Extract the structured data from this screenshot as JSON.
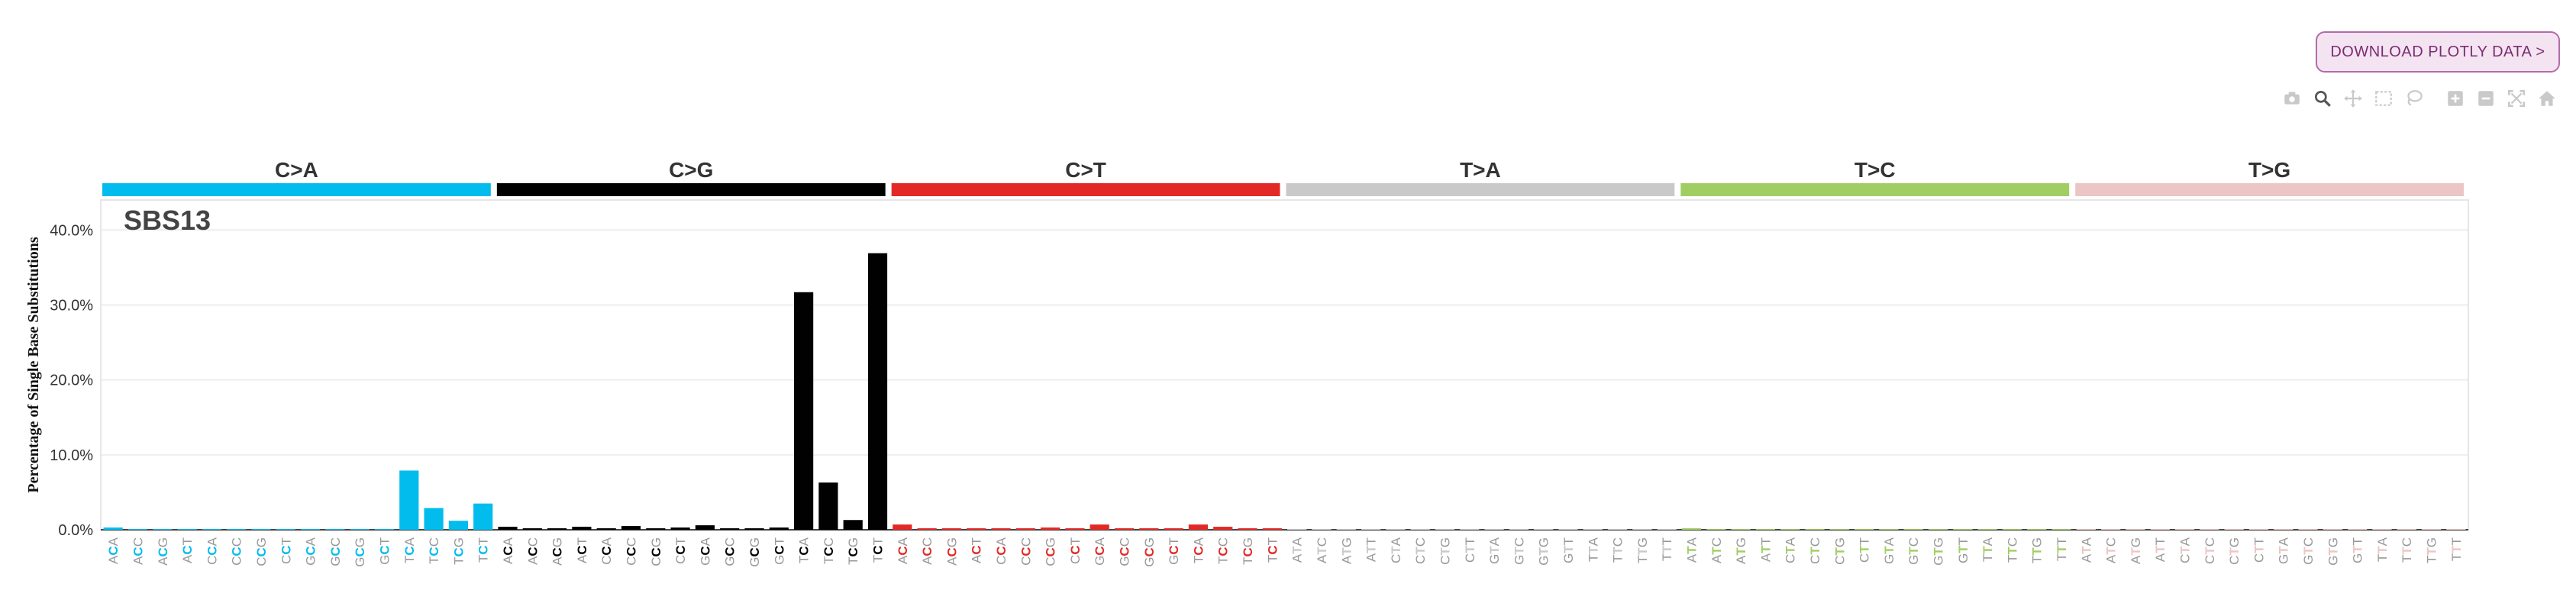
{
  "download_button": {
    "label": "DOWNLOAD PLOTLY DATA >"
  },
  "modebar": {
    "buttons": [
      {
        "name": "camera-icon"
      },
      {
        "name": "zoom-icon"
      },
      {
        "name": "pan-icon"
      },
      {
        "name": "box-select-icon"
      },
      {
        "name": "lasso-select-icon"
      },
      {
        "name": "zoom-in-icon"
      },
      {
        "name": "zoom-out-icon"
      },
      {
        "name": "autoscale-icon"
      },
      {
        "name": "home-icon"
      }
    ]
  },
  "chart_data": {
    "type": "bar",
    "title": "SBS13",
    "ylabel": "Percentage of Single Base Substitutions",
    "xlabel": "",
    "ylim": [
      0,
      0.44
    ],
    "yticks": [
      0,
      0.1,
      0.2,
      0.3,
      0.4
    ],
    "ytick_labels": [
      "0.0%",
      "10.0%",
      "20.0%",
      "30.0%",
      "40.0%"
    ],
    "grid": true,
    "legend": "none",
    "groups": [
      {
        "label": "C>A",
        "color": "#03bcee"
      },
      {
        "label": "C>G",
        "color": "#010101"
      },
      {
        "label": "C>T",
        "color": "#e32926"
      },
      {
        "label": "T>A",
        "color": "#cac9c9"
      },
      {
        "label": "T>C",
        "color": "#a1ce63"
      },
      {
        "label": "T>G",
        "color": "#ebc6c4"
      }
    ],
    "contexts_c": [
      "ACA",
      "ACC",
      "ACG",
      "ACT",
      "CCA",
      "CCC",
      "CCG",
      "CCT",
      "GCA",
      "GCC",
      "GCG",
      "GCT",
      "TCA",
      "TCC",
      "TCG",
      "TCT"
    ],
    "contexts_t": [
      "ATA",
      "ATC",
      "ATG",
      "ATT",
      "CTA",
      "CTC",
      "CTG",
      "CTT",
      "GTA",
      "GTC",
      "GTG",
      "GTT",
      "TTA",
      "TTC",
      "TTG",
      "TTT"
    ],
    "values": [
      [
        0.003,
        0.001,
        0.001,
        0.001,
        0.001,
        0.001,
        0.001,
        0.001,
        0.001,
        0.001,
        0.001,
        0.001,
        0.079,
        0.029,
        0.012,
        0.035
      ],
      [
        0.004,
        0.002,
        0.002,
        0.004,
        0.002,
        0.005,
        0.002,
        0.003,
        0.006,
        0.002,
        0.002,
        0.003,
        0.317,
        0.063,
        0.013,
        0.369
      ],
      [
        0.007,
        0.002,
        0.002,
        0.002,
        0.002,
        0.002,
        0.003,
        0.002,
        0.007,
        0.002,
        0.002,
        0.002,
        0.007,
        0.004,
        0.002,
        0.002
      ],
      [
        0.001,
        0.001,
        0.001,
        0.001,
        0.001,
        0.001,
        0.001,
        0.001,
        0.001,
        0.001,
        0.001,
        0.001,
        0.001,
        0.001,
        0.001,
        0.001
      ],
      [
        0.002,
        0.001,
        0.001,
        0.001,
        0.001,
        0.001,
        0.001,
        0.001,
        0.001,
        0.001,
        0.001,
        0.001,
        0.001,
        0.001,
        0.001,
        0.001
      ],
      [
        0.001,
        0.001,
        0.001,
        0.001,
        0.001,
        0.001,
        0.001,
        0.001,
        0.001,
        0.001,
        0.001,
        0.001,
        0.001,
        0.001,
        0.001,
        0.001
      ]
    ]
  }
}
